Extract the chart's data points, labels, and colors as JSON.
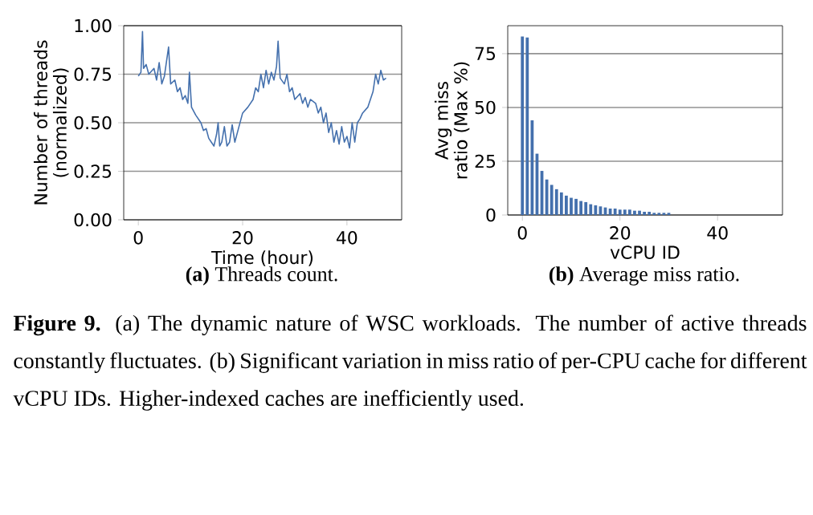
{
  "chart_data": [
    {
      "type": "line",
      "title": "**(a)** Threads count.",
      "xlabel": "Time (hour)",
      "ylabel": "Number of threads (normalized)",
      "x": [
        0,
        0.5,
        0.8,
        1.0,
        1.5,
        2,
        3,
        3.5,
        4,
        4.5,
        5,
        5.8,
        6.2,
        7,
        7.5,
        8,
        8.5,
        9,
        9.5,
        9.8,
        10.2,
        11,
        12,
        12.5,
        13,
        13.5,
        14,
        14.5,
        15,
        15.3,
        15.6,
        16,
        16.5,
        17,
        17.5,
        18,
        18.5,
        19,
        20,
        21,
        22,
        22.5,
        23,
        23.5,
        24,
        24.5,
        25,
        25.5,
        26,
        26.5,
        26.8,
        27.2,
        28,
        28.5,
        29,
        29.5,
        30,
        31,
        31.5,
        32,
        32.5,
        33,
        34,
        34.5,
        35,
        35.5,
        36,
        36.5,
        37,
        37.5,
        38,
        38.5,
        39,
        39.5,
        40,
        40.5,
        41,
        41.5,
        42,
        42.5,
        43,
        44,
        44.5,
        45,
        45.5,
        46,
        46.5,
        47,
        47.5
      ],
      "series": [
        {
          "color": "#4470ad",
          "values": [
            0.74,
            0.76,
            0.97,
            0.78,
            0.8,
            0.75,
            0.78,
            0.72,
            0.81,
            0.7,
            0.74,
            0.89,
            0.7,
            0.72,
            0.66,
            0.68,
            0.62,
            0.64,
            0.6,
            0.76,
            0.58,
            0.54,
            0.5,
            0.46,
            0.47,
            0.42,
            0.4,
            0.38,
            0.44,
            0.5,
            0.38,
            0.4,
            0.48,
            0.38,
            0.4,
            0.49,
            0.4,
            0.45,
            0.55,
            0.58,
            0.62,
            0.68,
            0.66,
            0.75,
            0.68,
            0.77,
            0.7,
            0.76,
            0.72,
            0.79,
            0.92,
            0.73,
            0.7,
            0.75,
            0.66,
            0.68,
            0.62,
            0.65,
            0.6,
            0.63,
            0.58,
            0.62,
            0.6,
            0.55,
            0.58,
            0.5,
            0.55,
            0.45,
            0.5,
            0.4,
            0.46,
            0.39,
            0.48,
            0.4,
            0.43,
            0.37,
            0.5,
            0.4,
            0.5,
            0.52,
            0.55,
            0.58,
            0.62,
            0.66,
            0.75,
            0.7,
            0.77,
            0.72,
            0.73
          ]
        }
      ],
      "xlim": [
        -2.8,
        50.5
      ],
      "ylim": [
        0,
        1
      ],
      "xticks": [
        0,
        20,
        40
      ],
      "yticks": [
        {
          "value": 0,
          "label": "0.00"
        },
        {
          "value": 0.25,
          "label": "0.25"
        },
        {
          "value": 0.5,
          "label": "0.50"
        },
        {
          "value": 0.75,
          "label": "0.75"
        },
        {
          "value": 1,
          "label": "1.00"
        }
      ],
      "grid": "y",
      "annotations": [
        "**Figure 9.** (a) The dynamic nature of WSC workloads. The number of active threads constantly fluctuates. (b) Significant variation in miss ratio of per-CPU cache for different vCPU IDs. Higher-indexed caches are inefficiently used."
      ]
    },
    {
      "type": "bar",
      "title": "**(b)** Average miss ratio.",
      "xlabel": "vCPU ID",
      "ylabel": "Avg miss ratio (Max %)",
      "x": [
        0,
        1,
        2,
        3,
        4,
        5,
        6,
        7,
        8,
        9,
        10,
        11,
        12,
        13,
        14,
        15,
        16,
        17,
        18,
        19,
        20,
        21,
        22,
        23,
        24,
        25,
        26,
        27,
        28,
        29,
        30
      ],
      "series": [
        {
          "color": "#4470ad",
          "values": [
            83,
            82.5,
            44,
            28.5,
            20.5,
            16.5,
            14,
            12,
            10.5,
            9,
            8,
            7.5,
            6.5,
            6,
            5,
            4.5,
            4,
            3.5,
            3,
            3,
            2.5,
            2.5,
            2.5,
            2,
            2,
            1.5,
            1.5,
            1,
            1,
            1,
            1
          ]
        }
      ],
      "xlim": [
        -3,
        53.3
      ],
      "ylim": [
        0,
        88
      ],
      "xticks": [
        0,
        20,
        40
      ],
      "yticks": [
        0,
        25,
        50,
        75
      ],
      "grid": "y"
    }
  ]
}
